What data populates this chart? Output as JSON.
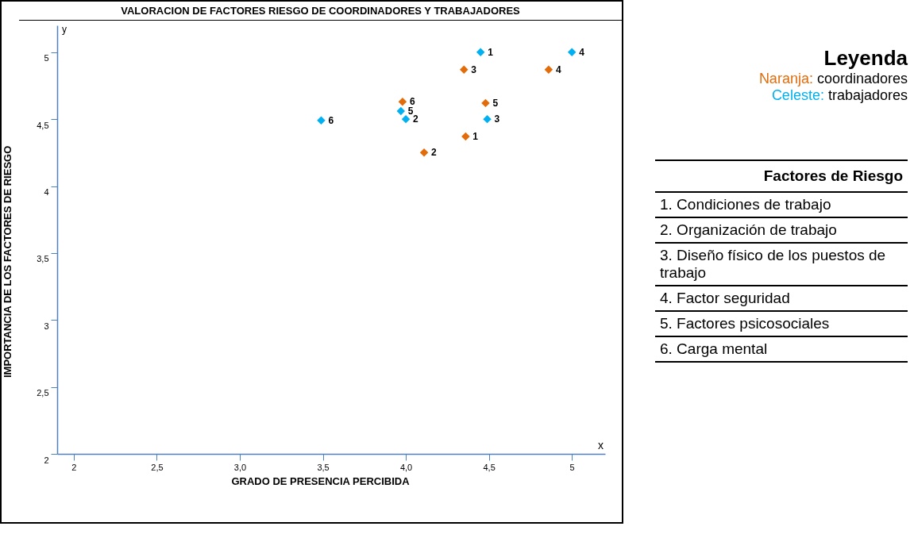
{
  "chart_data": {
    "type": "scatter",
    "title": "VALORACION DE FACTORES RIESGO DE COORDINADORES Y TRABAJADORES",
    "xlabel": "GRADO DE PRESENCIA PERCIBIDA",
    "ylabel": "IMPORTANCIA DE LOS FACTORES DE RIESGO",
    "legend_title": "Leyenda",
    "legend": "top right",
    "marker": "diamond",
    "grid": false,
    "xlim": [
      1.9,
      5.2
    ],
    "ylim": [
      2,
      5.2
    ],
    "xticks": [
      2,
      {
        "value": 2.5,
        "label": "2,5"
      },
      {
        "value": 3,
        "label": "3,0"
      },
      {
        "value": 3.5,
        "label": "3,5"
      },
      {
        "value": 4,
        "label": "4,0"
      },
      {
        "value": 4.5,
        "label": "4,5"
      },
      5
    ],
    "yticks": [
      2,
      {
        "value": 2.5,
        "label": "2,5"
      },
      3,
      {
        "value": 3.5,
        "label": "3,5"
      },
      4,
      {
        "value": 4.5,
        "label": "4,5"
      },
      5
    ],
    "series": [
      {
        "name": "Naranja: coordinadores",
        "color": "#e36c0a",
        "x": [
          4.36,
          4.11,
          4.35,
          4.86,
          4.48,
          3.98
        ],
        "values": [
          4.37,
          4.25,
          4.87,
          4.87,
          4.62,
          4.63
        ]
      },
      {
        "name": "Celeste: trabajadores",
        "color": "#00b0f0",
        "x": [
          4.45,
          4.0,
          4.49,
          5.0,
          3.97,
          3.49
        ],
        "values": [
          5.0,
          4.5,
          4.5,
          5.0,
          4.56,
          4.49
        ]
      }
    ],
    "annotations": [
      {
        "text": "1",
        "x": 4.36,
        "y": 4.37
      },
      {
        "text": "2",
        "x": 4.11,
        "y": 4.25
      },
      {
        "text": "3",
        "x": 4.35,
        "y": 4.87
      },
      {
        "text": "4",
        "x": 4.86,
        "y": 4.87
      },
      {
        "text": "5",
        "x": 4.48,
        "y": 4.62
      },
      {
        "text": "6",
        "x": 3.98,
        "y": 4.63
      },
      {
        "text": "1",
        "x": 4.45,
        "y": 5.0
      },
      {
        "text": "2",
        "x": 4.0,
        "y": 4.5
      },
      {
        "text": "3",
        "x": 4.49,
        "y": 4.5
      },
      {
        "text": "4",
        "x": 5.0,
        "y": 5.0
      },
      {
        "text": "5",
        "x": 3.97,
        "y": 4.56
      },
      {
        "text": "6",
        "x": 3.49,
        "y": 4.49
      },
      "x",
      "y",
      "Factores de Riesgo",
      "1. Condiciones de trabajo",
      "2. Organización de trabajo",
      "3. Diseño físico de los puestos de trabajo",
      "4. Factor seguridad",
      "5. Factores psicosociales",
      "6. Carga mental"
    ]
  }
}
